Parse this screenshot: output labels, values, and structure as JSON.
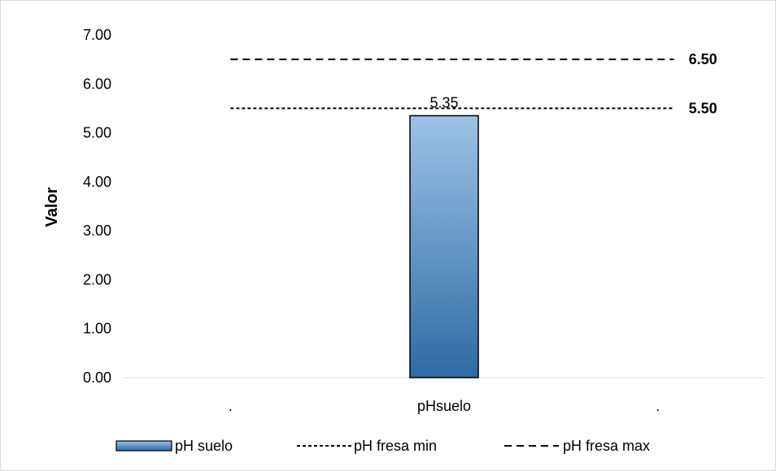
{
  "chart_data": {
    "type": "bar",
    "categories": [
      ".",
      "pHsuelo",
      "."
    ],
    "series": [
      {
        "name": "pH suelo",
        "type": "bar",
        "values": [
          null,
          5.35,
          null
        ],
        "data_labels": [
          "",
          "5.35",
          ""
        ]
      },
      {
        "name": "pH fresa min",
        "type": "line",
        "style": "dotted",
        "value": 5.5,
        "label": "5.50"
      },
      {
        "name": "pH fresa max",
        "type": "line",
        "style": "dashed",
        "value": 6.5,
        "label": "6.50"
      }
    ],
    "ylabel": "Valor",
    "xlabel": "",
    "ylim": [
      0,
      7
    ],
    "yticks": [
      "0.00",
      "1.00",
      "2.00",
      "3.00",
      "4.00",
      "5.00",
      "6.00",
      "7.00"
    ],
    "grid": false,
    "legend_position": "bottom",
    "colors": {
      "bar_top": "#9dc3e6",
      "bar_bottom": "#2e6aa5",
      "bar_border": "#000000",
      "lines": "#000000"
    }
  }
}
